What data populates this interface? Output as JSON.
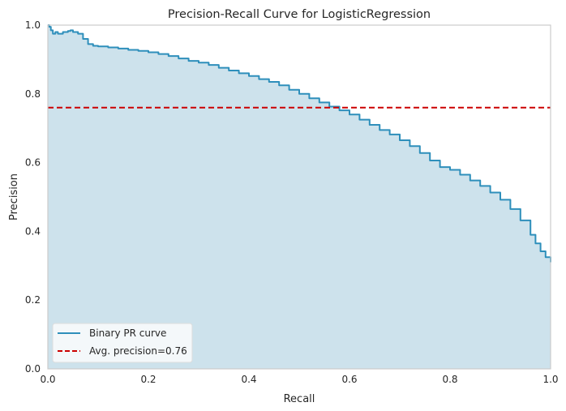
{
  "chart_data": {
    "type": "area",
    "title": "Precision-Recall Curve for LogisticRegression",
    "xlabel": "Recall",
    "ylabel": "Precision",
    "xlim": [
      0,
      1
    ],
    "ylim": [
      0,
      1
    ],
    "xticks": [
      "0.0",
      "0.2",
      "0.4",
      "0.6",
      "0.8",
      "1.0"
    ],
    "yticks": [
      "0.0",
      "0.2",
      "0.4",
      "0.6",
      "0.8",
      "1.0"
    ],
    "grid": false,
    "legend_position": "lower-left",
    "series": [
      {
        "name": "Binary PR curve",
        "kind": "step-line-with-fill",
        "color": "#2e8fbb",
        "fill_color": "#cde2ec",
        "x": [
          0.0,
          0.003,
          0.006,
          0.01,
          0.015,
          0.02,
          0.03,
          0.04,
          0.045,
          0.05,
          0.06,
          0.07,
          0.08,
          0.09,
          0.1,
          0.12,
          0.14,
          0.16,
          0.18,
          0.2,
          0.22,
          0.24,
          0.26,
          0.28,
          0.3,
          0.32,
          0.34,
          0.36,
          0.38,
          0.4,
          0.42,
          0.44,
          0.46,
          0.48,
          0.5,
          0.52,
          0.54,
          0.56,
          0.58,
          0.6,
          0.62,
          0.64,
          0.66,
          0.68,
          0.7,
          0.72,
          0.74,
          0.76,
          0.78,
          0.8,
          0.82,
          0.84,
          0.86,
          0.88,
          0.9,
          0.92,
          0.94,
          0.96,
          0.97,
          0.98,
          0.99,
          1.0
        ],
        "y": [
          1.0,
          0.995,
          0.985,
          0.975,
          0.98,
          0.975,
          0.98,
          0.983,
          0.985,
          0.98,
          0.975,
          0.96,
          0.945,
          0.94,
          0.938,
          0.935,
          0.932,
          0.928,
          0.925,
          0.921,
          0.916,
          0.91,
          0.903,
          0.896,
          0.891,
          0.884,
          0.876,
          0.868,
          0.86,
          0.852,
          0.843,
          0.835,
          0.825,
          0.812,
          0.8,
          0.787,
          0.775,
          0.763,
          0.752,
          0.74,
          0.725,
          0.71,
          0.695,
          0.682,
          0.665,
          0.648,
          0.628,
          0.606,
          0.587,
          0.579,
          0.565,
          0.548,
          0.532,
          0.513,
          0.492,
          0.465,
          0.432,
          0.39,
          0.365,
          0.342,
          0.325,
          0.31
        ]
      },
      {
        "name": "Avg. precision=0.76",
        "kind": "hline",
        "color": "#cc0000",
        "value": 0.76
      }
    ]
  }
}
